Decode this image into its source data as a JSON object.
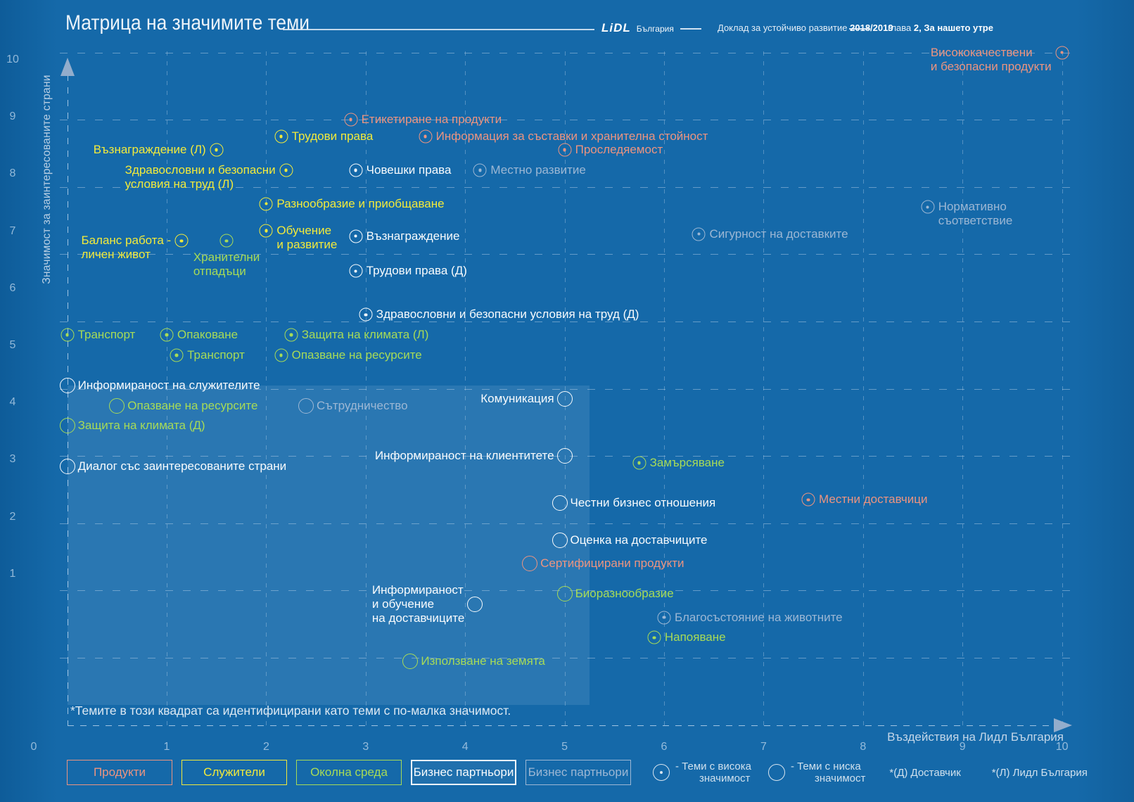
{
  "header": {
    "title": "Матрица на значимите теми",
    "brand": "LiDL",
    "brand_suffix": "България",
    "report_label": "Доклад за устойчиво развитие",
    "report_year": "2018/2019",
    "chapter_label": "глава",
    "chapter_value": "2, За нашето утре"
  },
  "footnote": "*Темите в този квадрат са идентифицирани като теми с по-малка значимост.",
  "legend": {
    "high": [
      "- Теми с висока",
      "значимост"
    ],
    "low": [
      "- Теми с ниска",
      "значимост"
    ],
    "supplier_note": "*(Д) Доставчик",
    "lidl_note": "*(Л) Лидл България"
  },
  "chart_data": {
    "type": "scatter",
    "title": "Матрица на значимите теми",
    "xlabel": "Въздействия на Лидл България",
    "ylabel": "Значимост за заинтересованите страни",
    "xlim": [
      0,
      10
    ],
    "ylim": [
      0,
      10
    ],
    "x_ticks": [
      0,
      1,
      2,
      3,
      4,
      5,
      6,
      7,
      8,
      9,
      10
    ],
    "y_ticks": [
      0,
      1,
      2,
      3,
      4,
      5,
      6,
      7,
      8,
      9,
      10
    ],
    "grid": "dashed",
    "legend_position": "bottom",
    "marker_semantics": {
      "high": "circle with center dot = high significance",
      "low": "open circle = low significance"
    },
    "low_significance_quadrant": {
      "x0": 0,
      "x1": 5.25,
      "y0": 0.3,
      "y1": 5.05
    },
    "categories": [
      {
        "id": "products",
        "label": "Продукти",
        "color": "#EC9480"
      },
      {
        "id": "employees",
        "label": "Служители",
        "color": "#F2EA3B"
      },
      {
        "id": "environment",
        "label": "Околна среда",
        "color": "#A7DB57"
      },
      {
        "id": "partners",
        "label": "Бизнес партньори",
        "color": "#F8FBFD"
      },
      {
        "id": "partners-secondary",
        "label": "Бизнес партньори",
        "color": "#9CB7D4"
      }
    ],
    "points": [
      {
        "label": [
          "Висококачествени",
          "и безопасни продукти"
        ],
        "x": 10,
        "y": 10,
        "cat": "products",
        "sig": "high",
        "pos": "l2"
      },
      {
        "label": [
          "Етикетиране на продукти"
        ],
        "x": 2.85,
        "y": 9,
        "cat": "products",
        "sig": "high",
        "pos": "r"
      },
      {
        "label": [
          "Информация за съставки и хранителна стойност"
        ],
        "x": 3.6,
        "y": 8.75,
        "cat": "products",
        "sig": "high",
        "pos": "r"
      },
      {
        "label": [
          "Проследяемост"
        ],
        "x": 5,
        "y": 8.55,
        "cat": "products",
        "sig": "high",
        "pos": "r"
      },
      {
        "label": [
          "Местни доставчици"
        ],
        "x": 7.45,
        "y": 3.35,
        "cat": "products",
        "sig": "high",
        "pos": "r"
      },
      {
        "label": [
          "Сертифицирани продукти"
        ],
        "x": 4.65,
        "y": 2.4,
        "cat": "products",
        "sig": "low",
        "pos": "r"
      },
      {
        "label": [
          "Трудови права"
        ],
        "x": 2.15,
        "y": 8.75,
        "cat": "employees",
        "sig": "high",
        "pos": "r"
      },
      {
        "label": [
          "Възнаграждение (Л)"
        ],
        "x": 1.5,
        "y": 8.55,
        "cat": "employees",
        "sig": "high",
        "pos": "l"
      },
      {
        "label": [
          "Здравословни и безопасни",
          "условия на труд (Л)"
        ],
        "x": 2.2,
        "y": 8.25,
        "cat": "employees",
        "sig": "high",
        "pos": "l2"
      },
      {
        "label": [
          "Разнообразие и приобщаване"
        ],
        "x": 2,
        "y": 7.75,
        "cat": "employees",
        "sig": "high",
        "pos": "r"
      },
      {
        "label": [
          "Обучение",
          "и развитие"
        ],
        "x": 2,
        "y": 7.35,
        "cat": "employees",
        "sig": "high",
        "pos": "r"
      },
      {
        "label": [
          "Баланс работа -",
          "личен живот"
        ],
        "x": 1.15,
        "y": 7.2,
        "cat": "employees",
        "sig": "high",
        "pos": "l2"
      },
      {
        "label": [
          "Хранителни",
          "отпадъци"
        ],
        "x": 1.6,
        "y": 7.2,
        "cat": "environment",
        "sig": "high",
        "pos": "b"
      },
      {
        "label": [
          "Транспорт"
        ],
        "x": 0,
        "y": 5.8,
        "cat": "environment",
        "sig": "high",
        "pos": "r"
      },
      {
        "label": [
          "Опаковане"
        ],
        "x": 1,
        "y": 5.8,
        "cat": "environment",
        "sig": "high",
        "pos": "r"
      },
      {
        "label": [
          "Транспорт"
        ],
        "x": 1.1,
        "y": 5.5,
        "cat": "environment",
        "sig": "high",
        "pos": "r"
      },
      {
        "label": [
          "Защита на климата (Л)"
        ],
        "x": 2.25,
        "y": 5.8,
        "cat": "environment",
        "sig": "high",
        "pos": "r"
      },
      {
        "label": [
          "Опазване на ресурсите"
        ],
        "x": 2.15,
        "y": 5.5,
        "cat": "environment",
        "sig": "high",
        "pos": "r"
      },
      {
        "label": [
          "Опазване на ресурсите"
        ],
        "x": 0.5,
        "y": 4.75,
        "cat": "environment",
        "sig": "low",
        "pos": "r"
      },
      {
        "label": [
          "Защита на климата (Д)"
        ],
        "x": 0,
        "y": 4.45,
        "cat": "environment",
        "sig": "low",
        "pos": "r"
      },
      {
        "label": [
          "Замърсяване"
        ],
        "x": 5.75,
        "y": 3.9,
        "cat": "environment",
        "sig": "high",
        "pos": "r"
      },
      {
        "label": [
          "Биоразнообразие"
        ],
        "x": 5,
        "y": 1.95,
        "cat": "environment",
        "sig": "low",
        "pos": "r"
      },
      {
        "label": [
          "Напояване"
        ],
        "x": 5.9,
        "y": 1.3,
        "cat": "environment",
        "sig": "high",
        "pos": "r"
      },
      {
        "label": [
          "Използване на земята"
        ],
        "x": 3.45,
        "y": 0.95,
        "cat": "environment",
        "sig": "low",
        "pos": "r"
      },
      {
        "label": [
          "Човешки права"
        ],
        "x": 2.9,
        "y": 8.25,
        "cat": "partners",
        "sig": "high",
        "pos": "r"
      },
      {
        "label": [
          "Възнаграждение"
        ],
        "x": 2.9,
        "y": 7.27,
        "cat": "partners",
        "sig": "high",
        "pos": "r"
      },
      {
        "label": [
          "Трудови права (Д)"
        ],
        "x": 2.9,
        "y": 6.75,
        "cat": "partners",
        "sig": "high",
        "pos": "r"
      },
      {
        "label": [
          "Здравословни и безопасни условия на труд (Д)"
        ],
        "x": 3,
        "y": 6.1,
        "cat": "partners",
        "sig": "high",
        "pos": "r"
      },
      {
        "label": [
          "Информираност на служителите"
        ],
        "x": 0,
        "y": 5.05,
        "cat": "partners",
        "sig": "low",
        "pos": "r"
      },
      {
        "label": [
          "Комуникация"
        ],
        "x": 5,
        "y": 4.85,
        "cat": "partners",
        "sig": "low",
        "pos": "l"
      },
      {
        "label": [
          "Информираност на клиентитете"
        ],
        "x": 5,
        "y": 4,
        "cat": "partners",
        "sig": "low",
        "pos": "l"
      },
      {
        "label": [
          "Диалог със заинтересованите страни"
        ],
        "x": 0,
        "y": 3.85,
        "cat": "partners",
        "sig": "low",
        "pos": "r"
      },
      {
        "label": [
          "Честни бизнес отношения"
        ],
        "x": 4.95,
        "y": 3.3,
        "cat": "partners",
        "sig": "low",
        "pos": "r"
      },
      {
        "label": [
          "Оценка на доставчиците"
        ],
        "x": 4.95,
        "y": 2.75,
        "cat": "partners",
        "sig": "low",
        "pos": "r"
      },
      {
        "label": [
          "Информираност",
          "и обучение",
          "на доставчиците"
        ],
        "x": 4.1,
        "y": 1.8,
        "cat": "partners",
        "sig": "low",
        "pos": "l3"
      },
      {
        "label": [
          "Местно развитие"
        ],
        "x": 4.15,
        "y": 8.25,
        "cat": "partners-secondary",
        "sig": "high",
        "pos": "r"
      },
      {
        "label": [
          "Сигурност на доставките"
        ],
        "x": 6.35,
        "y": 7.3,
        "cat": "partners-secondary",
        "sig": "high",
        "pos": "r"
      },
      {
        "label": [
          "Нормативно",
          "съответствие"
        ],
        "x": 8.65,
        "y": 7.7,
        "cat": "partners-secondary",
        "sig": "high",
        "pos": "r"
      },
      {
        "label": [
          "Сътрудничество"
        ],
        "x": 2.4,
        "y": 4.75,
        "cat": "partners-secondary",
        "sig": "low",
        "pos": "r"
      },
      {
        "label": [
          "Благосъстояние на животните"
        ],
        "x": 6,
        "y": 1.6,
        "cat": "partners-secondary",
        "sig": "high",
        "pos": "r"
      }
    ]
  }
}
